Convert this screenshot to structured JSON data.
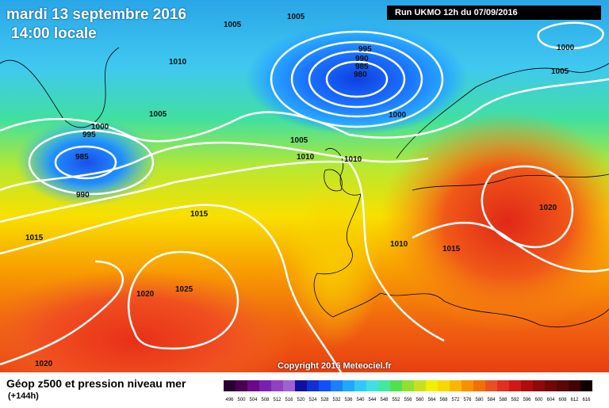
{
  "header": {
    "date": "mardi 13 septembre 2016",
    "local_time": "14:00 locale",
    "run_info": "Run UKMO 12h du 07/09/2016"
  },
  "copyright": "Copyright 2016 Meteociel.fr",
  "footer": {
    "title": "Géop z500 et pression niveau mer",
    "lead_time": "(+144h)"
  },
  "legend": {
    "values": [
      "496",
      "500",
      "504",
      "508",
      "512",
      "516",
      "520",
      "524",
      "528",
      "532",
      "536",
      "540",
      "544",
      "548",
      "552",
      "556",
      "560",
      "564",
      "568",
      "572",
      "576",
      "580",
      "584",
      "588",
      "592",
      "596",
      "600",
      "604",
      "608",
      "612",
      "616"
    ],
    "colors": [
      "#2a0030",
      "#4a0050",
      "#6a0a8a",
      "#7a20b0",
      "#9040c0",
      "#a060d0",
      "#1010a0",
      "#1030d0",
      "#1050ff",
      "#1a80ff",
      "#20a8ff",
      "#30c8ff",
      "#40e0e0",
      "#40e8a0",
      "#50e050",
      "#90e030",
      "#c8e020",
      "#f0f000",
      "#f8d800",
      "#f8b800",
      "#f89000",
      "#f07000",
      "#e85020",
      "#e03020",
      "#d01818",
      "#b00c0c",
      "#900808",
      "#700808",
      "#580808",
      "#400404",
      "#100000"
    ]
  },
  "isobars": [
    "1005",
    "1005",
    "1010",
    "995",
    "990",
    "985",
    "980",
    "1000",
    "1000",
    "1005",
    "1000",
    "995",
    "985",
    "990",
    "1005",
    "1010",
    "1010",
    "1005",
    "1015",
    "1015",
    "1025",
    "1020",
    "1010",
    "1015",
    "1020",
    "1020"
  ]
}
